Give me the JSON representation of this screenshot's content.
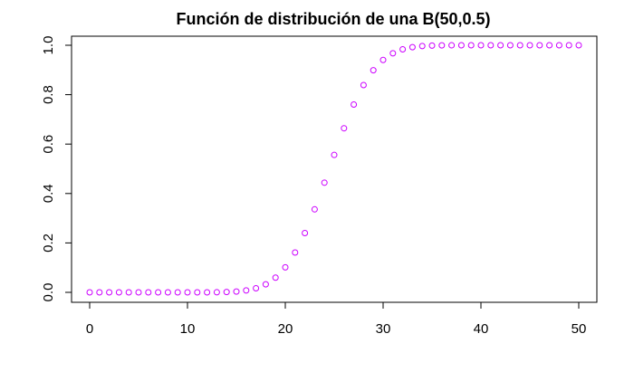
{
  "chart_data": {
    "type": "scatter",
    "title": "Función de distribución de una B(50,0.5)",
    "xlabel": "",
    "ylabel": "",
    "xlim": [
      0,
      50
    ],
    "ylim": [
      0,
      1
    ],
    "x_ticks": [
      0,
      10,
      20,
      30,
      40,
      50
    ],
    "y_ticks": [
      0.0,
      0.2,
      0.4,
      0.6,
      0.8,
      1.0
    ],
    "x_tick_labels": [
      "0",
      "10",
      "20",
      "30",
      "40",
      "50"
    ],
    "y_tick_labels": [
      "0.0",
      "0.2",
      "0.4",
      "0.6",
      "0.8",
      "1.0"
    ],
    "grid": false,
    "point_color": "#cc00ff",
    "x": [
      0,
      1,
      2,
      3,
      4,
      5,
      6,
      7,
      8,
      9,
      10,
      11,
      12,
      13,
      14,
      15,
      16,
      17,
      18,
      19,
      20,
      21,
      22,
      23,
      24,
      25,
      26,
      27,
      28,
      29,
      30,
      31,
      32,
      33,
      34,
      35,
      36,
      37,
      38,
      39,
      40,
      41,
      42,
      43,
      44,
      45,
      46,
      47,
      48,
      49,
      50
    ],
    "y": [
      0,
      0,
      0,
      0,
      0,
      0,
      0,
      0,
      0,
      0,
      0,
      0,
      0,
      0.0003,
      0.0013,
      0.0033,
      0.0077,
      0.0164,
      0.0325,
      0.0595,
      0.1013,
      0.1611,
      0.2399,
      0.3359,
      0.4439,
      0.5561,
      0.6641,
      0.7601,
      0.8389,
      0.8987,
      0.9405,
      0.9675,
      0.9836,
      0.9923,
      0.9967,
      0.9987,
      0.9995,
      0.9998,
      1,
      1,
      1,
      1,
      1,
      1,
      1,
      1,
      1,
      1,
      1,
      1,
      1
    ]
  }
}
